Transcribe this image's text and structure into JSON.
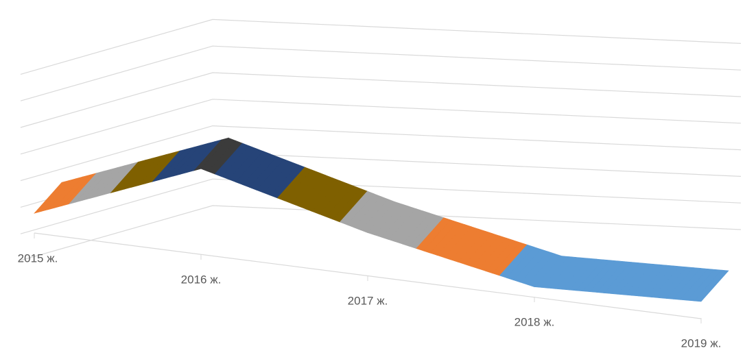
{
  "chart_data": {
    "type": "surface",
    "categories": [
      "2015 ж.",
      "2016 ж.",
      "2017 ж.",
      "2018 ж.",
      "2019 ж."
    ],
    "values": [
      1.2,
      5.2,
      2.6,
      0.6,
      1.0
    ],
    "ylim": [
      0,
      7
    ],
    "yticks": [
      0,
      1,
      2,
      3,
      4,
      5,
      6,
      7
    ],
    "grid": true,
    "band_colors": [
      "#5b9bd5",
      "#ed7d31",
      "#a5a5a5",
      "#7f6000",
      "#264478",
      "#3b3b3b",
      "#7e3b10"
    ]
  }
}
